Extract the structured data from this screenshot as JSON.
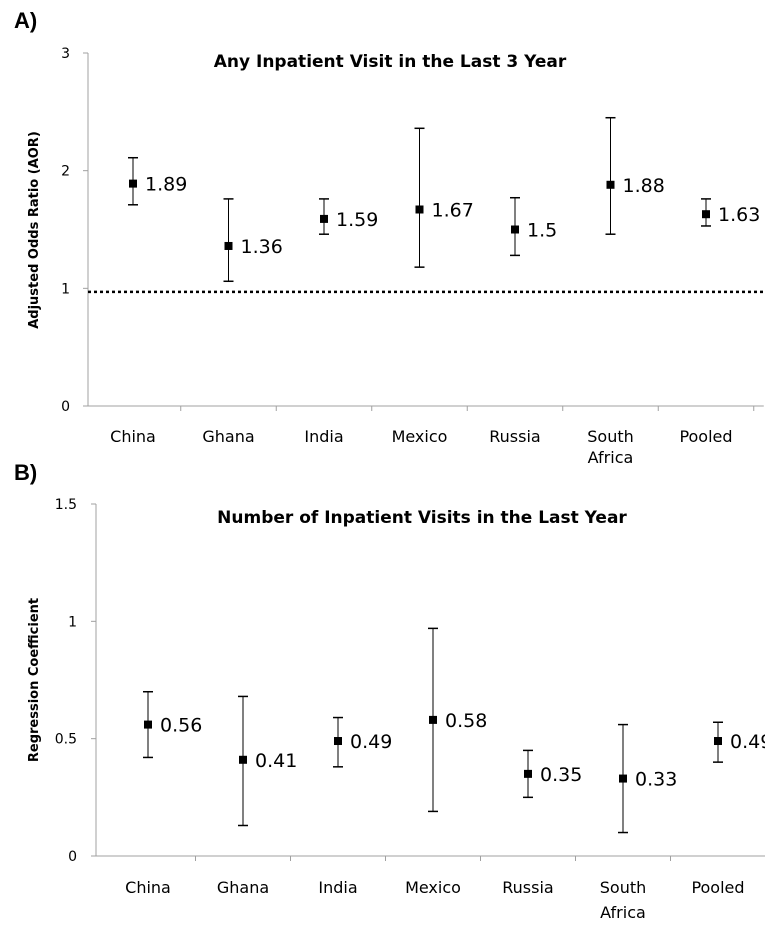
{
  "chart_data": [
    {
      "panel_label": "A)",
      "type": "scatter",
      "title": "Any Inpatient Visit in the Last 3 Year",
      "xlabel": "",
      "ylabel": "Adjusted Odds Ratio (AOR)",
      "ylim": [
        0,
        3
      ],
      "yticks": [
        0,
        1,
        2,
        3
      ],
      "reference_line": 0.97,
      "categories": [
        [
          "China"
        ],
        [
          "Ghana"
        ],
        [
          "India"
        ],
        [
          "Mexico"
        ],
        [
          "Russia"
        ],
        [
          "South",
          "Africa"
        ],
        [
          "Pooled"
        ]
      ],
      "values": [
        1.89,
        1.36,
        1.59,
        1.67,
        1.5,
        1.88,
        1.63
      ],
      "value_labels": [
        "1.89",
        "1.36",
        "1.59",
        "1.67",
        "1.5",
        "1.88",
        "1.63"
      ],
      "lower": [
        1.71,
        1.06,
        1.46,
        1.18,
        1.28,
        1.46,
        1.53
      ],
      "upper": [
        2.11,
        1.76,
        1.76,
        2.36,
        1.77,
        2.45,
        1.76
      ],
      "grid": false
    },
    {
      "panel_label": "B)",
      "type": "scatter",
      "title": "Number of Inpatient Visits in the Last Year",
      "xlabel": "",
      "ylabel": "Regression Coefficient",
      "ylim": [
        0,
        1.5
      ],
      "yticks": [
        0,
        0.5,
        1,
        1.5
      ],
      "categories": [
        [
          "China"
        ],
        [
          "Ghana"
        ],
        [
          "India"
        ],
        [
          "Mexico"
        ],
        [
          "Russia"
        ],
        [
          "South",
          "Africa"
        ],
        [
          "Pooled"
        ]
      ],
      "values": [
        0.56,
        0.41,
        0.49,
        0.58,
        0.35,
        0.33,
        0.49
      ],
      "value_labels": [
        "0.56",
        "0.41",
        "0.49",
        "0.58",
        "0.35",
        "0.33",
        "0.49"
      ],
      "lower": [
        0.42,
        0.13,
        0.38,
        0.19,
        0.25,
        0.1,
        0.4
      ],
      "upper": [
        0.7,
        0.68,
        0.59,
        0.97,
        0.45,
        0.56,
        0.57
      ],
      "grid": false
    }
  ]
}
